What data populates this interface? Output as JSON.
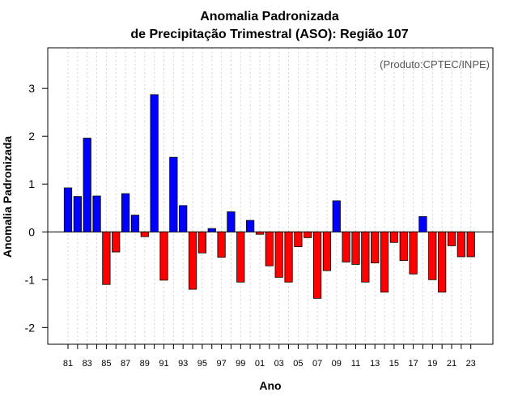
{
  "chart_data": {
    "type": "bar",
    "title_line1": "Anomalia Padronizada",
    "title_line2": "de Precipitação Trimestral (ASO): Região 107",
    "xlabel": "Ano",
    "ylabel": "Anomalia Padronizada",
    "annotation": "(Produto:CPTEC/INPE)",
    "ylim": [
      -2.35,
      3.85
    ],
    "yticks": [
      -2,
      -1,
      0,
      1,
      2,
      3
    ],
    "ytick_labels": [
      "-2",
      "-1",
      "0",
      "1",
      "2",
      "3"
    ],
    "x": [
      1981,
      1982,
      1983,
      1984,
      1985,
      1986,
      1987,
      1988,
      1989,
      1990,
      1991,
      1992,
      1993,
      1994,
      1995,
      1996,
      1997,
      1998,
      1999,
      2000,
      2001,
      2002,
      2003,
      2004,
      2005,
      2006,
      2007,
      2008,
      2009,
      2010,
      2011,
      2012,
      2013,
      2014,
      2015,
      2016,
      2017,
      2018,
      2019,
      2020,
      2021,
      2022,
      2023
    ],
    "xtick_labels": [
      "81",
      "83",
      "85",
      "87",
      "89",
      "91",
      "93",
      "95",
      "97",
      "99",
      "01",
      "03",
      "05",
      "07",
      "09",
      "11",
      "13",
      "15",
      "17",
      "19",
      "21",
      "23"
    ],
    "values": [
      0.92,
      0.74,
      1.96,
      0.75,
      -1.1,
      -0.42,
      0.8,
      0.35,
      -0.1,
      2.87,
      -1.01,
      1.56,
      0.55,
      -1.2,
      -0.44,
      0.07,
      -0.53,
      0.42,
      -1.05,
      0.24,
      -0.05,
      -0.71,
      -0.95,
      -1.05,
      -0.31,
      -0.12,
      -1.39,
      -0.81,
      0.65,
      -0.63,
      -0.68,
      -1.05,
      -0.65,
      -1.26,
      -0.22,
      -0.6,
      -0.88,
      0.32,
      -1.0,
      -1.26,
      -0.29,
      -0.52,
      -0.52
    ],
    "colors": {
      "positive": "#0000ff",
      "negative": "#ff0000",
      "grid": "#d3d3d3",
      "axis": "#000000"
    },
    "grid": true,
    "legend": "none"
  }
}
